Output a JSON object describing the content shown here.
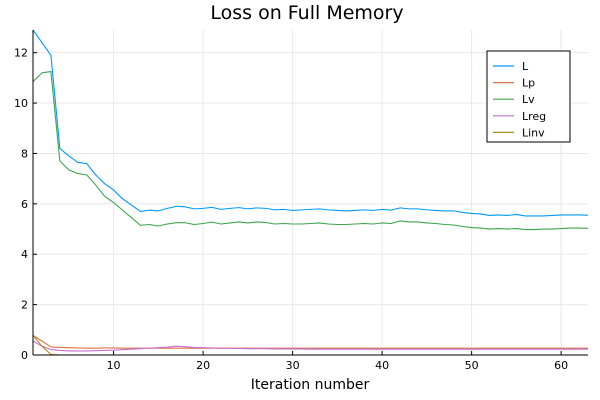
{
  "chart_data": {
    "type": "line",
    "title": "Loss on Full Memory",
    "xlabel": "Iteration number",
    "ylabel": "",
    "xlim": [
      1,
      63
    ],
    "ylim": [
      0,
      12.9
    ],
    "xticks": [
      10,
      20,
      30,
      40,
      50,
      60
    ],
    "yticks": [
      0,
      2,
      4,
      6,
      8,
      10,
      12
    ],
    "grid": true,
    "legend_position": "top-right",
    "series": [
      {
        "name": "L",
        "color": "#009af9",
        "x": [
          1,
          2,
          3,
          4,
          5,
          6,
          7,
          8,
          9,
          10,
          11,
          12,
          13,
          14,
          15,
          16,
          17,
          18,
          19,
          20,
          21,
          22,
          23,
          24,
          25,
          26,
          27,
          28,
          29,
          30,
          31,
          32,
          33,
          34,
          35,
          36,
          37,
          38,
          39,
          40,
          41,
          42,
          43,
          44,
          45,
          46,
          47,
          48,
          49,
          50,
          51,
          52,
          53,
          54,
          55,
          56,
          57,
          58,
          59,
          60,
          61,
          62,
          63
        ],
        "values": [
          12.9,
          12.4,
          11.9,
          8.2,
          7.9,
          7.65,
          7.6,
          7.15,
          6.8,
          6.55,
          6.2,
          5.95,
          5.7,
          5.75,
          5.72,
          5.82,
          5.9,
          5.88,
          5.8,
          5.82,
          5.86,
          5.78,
          5.82,
          5.85,
          5.8,
          5.84,
          5.82,
          5.76,
          5.78,
          5.74,
          5.76,
          5.78,
          5.8,
          5.76,
          5.74,
          5.72,
          5.74,
          5.76,
          5.74,
          5.78,
          5.75,
          5.84,
          5.8,
          5.8,
          5.76,
          5.74,
          5.72,
          5.72,
          5.66,
          5.62,
          5.6,
          5.54,
          5.56,
          5.54,
          5.58,
          5.52,
          5.52,
          5.52,
          5.54,
          5.56,
          5.56,
          5.56,
          5.55
        ]
      },
      {
        "name": "Lp",
        "color": "#e26f46",
        "x": [
          1,
          2,
          3,
          4,
          5,
          6,
          7,
          8,
          9,
          10,
          11,
          12,
          13,
          14,
          15,
          16,
          17,
          18,
          19,
          20,
          21,
          22,
          23,
          24,
          25,
          26,
          27,
          28,
          29,
          30,
          31,
          32,
          33,
          34,
          35,
          36,
          37,
          38,
          39,
          40,
          41,
          42,
          43,
          44,
          45,
          46,
          47,
          48,
          49,
          50,
          51,
          52,
          53,
          54,
          55,
          56,
          57,
          58,
          59,
          60,
          61,
          62,
          63
        ],
        "values": [
          0.78,
          0.55,
          0.32,
          0.3,
          0.29,
          0.28,
          0.27,
          0.27,
          0.28,
          0.28,
          0.27,
          0.27,
          0.27,
          0.27,
          0.27,
          0.27,
          0.27,
          0.27,
          0.27,
          0.27,
          0.27,
          0.27,
          0.27,
          0.27,
          0.27,
          0.27,
          0.27,
          0.27,
          0.27,
          0.27,
          0.27,
          0.27,
          0.27,
          0.27,
          0.27,
          0.27,
          0.27,
          0.27,
          0.27,
          0.27,
          0.27,
          0.27,
          0.27,
          0.27,
          0.27,
          0.27,
          0.27,
          0.27,
          0.27,
          0.27,
          0.27,
          0.27,
          0.27,
          0.27,
          0.27,
          0.27,
          0.27,
          0.27,
          0.27,
          0.27,
          0.27,
          0.27,
          0.27
        ]
      },
      {
        "name": "Lv",
        "color": "#3da44d",
        "x": [
          1,
          2,
          3,
          4,
          5,
          6,
          7,
          8,
          9,
          10,
          11,
          12,
          13,
          14,
          15,
          16,
          17,
          18,
          19,
          20,
          21,
          22,
          23,
          24,
          25,
          26,
          27,
          28,
          29,
          30,
          31,
          32,
          33,
          34,
          35,
          36,
          37,
          38,
          39,
          40,
          41,
          42,
          43,
          44,
          45,
          46,
          47,
          48,
          49,
          50,
          51,
          52,
          53,
          54,
          55,
          56,
          57,
          58,
          59,
          60,
          61,
          62,
          63
        ],
        "values": [
          10.85,
          11.2,
          11.25,
          7.7,
          7.35,
          7.2,
          7.15,
          6.75,
          6.3,
          6.05,
          5.75,
          5.45,
          5.15,
          5.18,
          5.12,
          5.2,
          5.25,
          5.25,
          5.18,
          5.22,
          5.28,
          5.2,
          5.24,
          5.28,
          5.24,
          5.28,
          5.26,
          5.2,
          5.22,
          5.2,
          5.2,
          5.22,
          5.24,
          5.2,
          5.18,
          5.18,
          5.2,
          5.22,
          5.2,
          5.24,
          5.22,
          5.32,
          5.28,
          5.28,
          5.24,
          5.22,
          5.18,
          5.16,
          5.1,
          5.06,
          5.04,
          5.0,
          5.02,
          5.0,
          5.02,
          4.98,
          4.98,
          5.0,
          5.0,
          5.02,
          5.04,
          5.04,
          5.03
        ]
      },
      {
        "name": "Lreg",
        "color": "#c271d2",
        "x": [
          1,
          2,
          3,
          4,
          5,
          6,
          7,
          8,
          9,
          10,
          11,
          12,
          13,
          14,
          15,
          16,
          17,
          18,
          19,
          20,
          21,
          22,
          23,
          24,
          25,
          26,
          27,
          28,
          29,
          30,
          31,
          32,
          33,
          34,
          35,
          36,
          37,
          38,
          39,
          40,
          41,
          42,
          43,
          44,
          45,
          46,
          47,
          48,
          49,
          50,
          51,
          52,
          53,
          54,
          55,
          56,
          57,
          58,
          59,
          60,
          61,
          62,
          63
        ],
        "values": [
          0.55,
          0.35,
          0.22,
          0.18,
          0.16,
          0.16,
          0.16,
          0.17,
          0.18,
          0.19,
          0.21,
          0.23,
          0.25,
          0.27,
          0.29,
          0.31,
          0.35,
          0.33,
          0.3,
          0.29,
          0.28,
          0.27,
          0.26,
          0.26,
          0.25,
          0.25,
          0.25,
          0.24,
          0.24,
          0.24,
          0.24,
          0.23,
          0.23,
          0.23,
          0.23,
          0.23,
          0.23,
          0.23,
          0.23,
          0.23,
          0.23,
          0.23,
          0.23,
          0.23,
          0.23,
          0.23,
          0.23,
          0.23,
          0.23,
          0.23,
          0.23,
          0.23,
          0.23,
          0.23,
          0.23,
          0.23,
          0.23,
          0.23,
          0.23,
          0.23,
          0.23,
          0.23,
          0.23
        ]
      },
      {
        "name": "Linv",
        "color": "#ac8d18",
        "x": [
          1,
          2,
          3,
          4,
          5,
          6,
          7,
          8,
          9,
          10,
          11,
          12,
          13,
          14,
          15,
          16,
          17,
          18,
          19,
          20,
          21,
          22,
          23,
          24,
          25,
          26,
          27,
          28,
          29,
          30,
          31,
          32,
          33,
          34,
          35,
          36,
          37,
          38,
          39,
          40,
          41,
          42,
          43,
          44,
          45,
          46,
          47,
          48,
          49,
          50,
          51,
          52,
          53,
          54,
          55,
          56,
          57,
          58,
          59,
          60,
          61,
          62,
          63
        ],
        "values": [
          0.78,
          0.35,
          0.02,
          0,
          0,
          0,
          0,
          0,
          0,
          0,
          0,
          0,
          0,
          0,
          0,
          0,
          0,
          0,
          0,
          0,
          0,
          0,
          0,
          0,
          0,
          0,
          0,
          0,
          0,
          0,
          0,
          0,
          0,
          0,
          0,
          0,
          0,
          0,
          0,
          0,
          0,
          0,
          0,
          0,
          0,
          0,
          0,
          0,
          0,
          0,
          0,
          0,
          0,
          0,
          0,
          0,
          0,
          0,
          0,
          0,
          0,
          0,
          0
        ]
      }
    ]
  }
}
